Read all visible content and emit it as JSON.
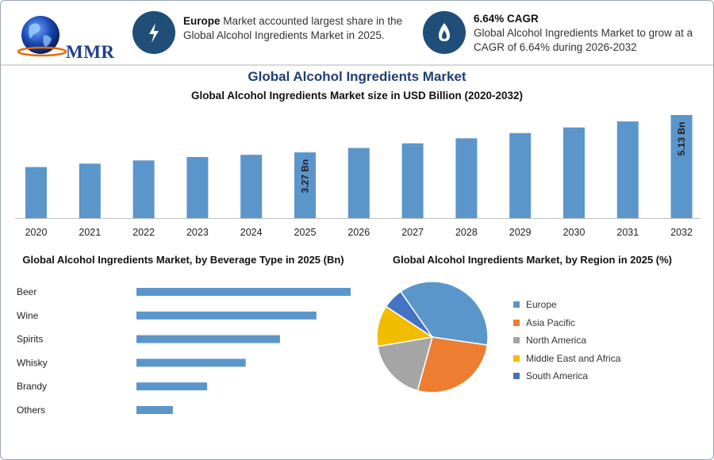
{
  "header": {
    "logo_text": "MMR",
    "info1": {
      "bold": "Europe",
      "text": " Market accounted largest share in the Global Alcohol Ingredients Market in 2025.",
      "icon": "lightning-icon"
    },
    "info2": {
      "bold": "6.64% CAGR",
      "text": "Global Alcohol Ingredients Market to grow at a CAGR of 6.64% during 2026-2032",
      "icon": "flame-drop-icon"
    }
  },
  "colors": {
    "bar": "#5b96cb",
    "dark_blue": "#1f4e79",
    "title_blue": "#1f3f75"
  },
  "chart_data": [
    {
      "type": "bar",
      "title": "Global Alcohol Ingredients Market",
      "subtitle": "Global Alcohol Ingredients Market size in USD Billion (2020-2032)",
      "categories": [
        "2020",
        "2021",
        "2022",
        "2023",
        "2024",
        "2025",
        "2026",
        "2027",
        "2028",
        "2029",
        "2030",
        "2031",
        "2032"
      ],
      "values": [
        2.54,
        2.71,
        2.87,
        3.04,
        3.15,
        3.27,
        3.49,
        3.72,
        3.97,
        4.23,
        4.51,
        4.81,
        5.13
      ],
      "data_labels": {
        "5": "3.27 Bn",
        "12": "5.13 Bn"
      },
      "ylim": [
        0,
        5.13
      ]
    },
    {
      "type": "bar",
      "orientation": "horizontal",
      "title": "Global Alcohol Ingredients Market, by Beverage Type in 2025 (Bn)",
      "categories": [
        "Beer",
        "Wine",
        "Spirits",
        "Whisky",
        "Brandy",
        "Others"
      ],
      "values": [
        1.0,
        0.84,
        0.67,
        0.51,
        0.33,
        0.17
      ],
      "xlim": [
        0,
        1.0
      ]
    },
    {
      "type": "pie",
      "title": "Global Alcohol Ingredients Market, by Region in 2025 (%)",
      "labels": [
        "Europe",
        "Asia Pacific",
        "North America",
        "Middle East and Africa",
        "South America"
      ],
      "values": [
        37,
        27,
        18,
        12,
        6
      ],
      "colors": [
        "#5b96cb",
        "#ed7d31",
        "#a5a5a5",
        "#f2bc00",
        "#4472c4"
      ],
      "legend_position": "right"
    }
  ]
}
